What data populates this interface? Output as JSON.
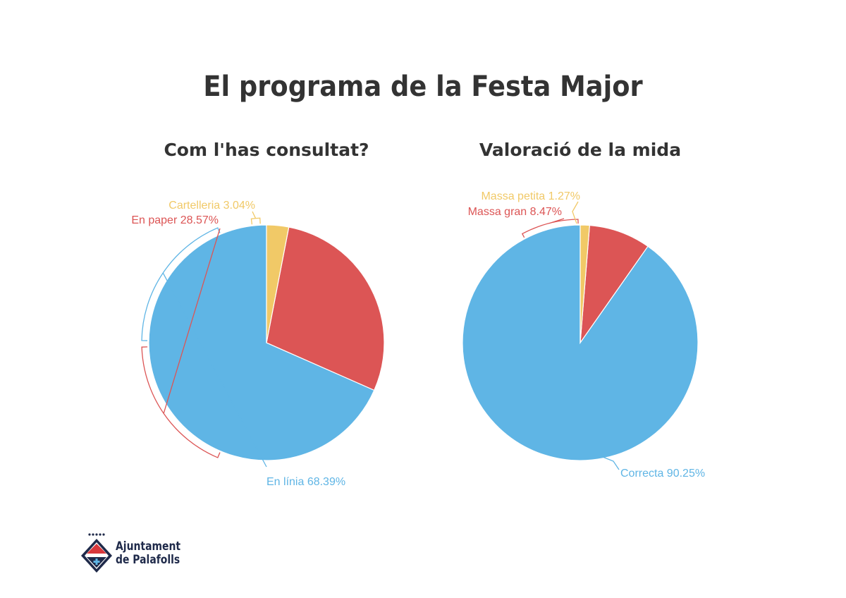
{
  "page": {
    "title": "El programa de la Festa Major"
  },
  "colors": {
    "blue": "#5fb5e5",
    "red": "#dc5555",
    "yellow": "#f1c967",
    "text_dark": "#333333",
    "logo_navy": "#1f2a4a",
    "logo_red": "#d8383c"
  },
  "chart_data": [
    {
      "type": "pie",
      "title": "Com l'has consultat?",
      "slices": [
        {
          "label": "En línia 68.39%",
          "value": 68.39,
          "color": "#5fb5e5"
        },
        {
          "label": "En paper 28.57%",
          "value": 28.57,
          "color": "#dc5555"
        },
        {
          "label": "Cartelleria 3.04%",
          "value": 3.04,
          "color": "#f1c967"
        }
      ]
    },
    {
      "type": "pie",
      "title": "Valoració de la mida",
      "slices": [
        {
          "label": "Correcta 90.25%",
          "value": 90.25,
          "color": "#5fb5e5"
        },
        {
          "label": "Massa gran 8.47%",
          "value": 8.47,
          "color": "#dc5555"
        },
        {
          "label": "Massa petita 1.27%",
          "value": 1.27,
          "color": "#f1c967"
        }
      ]
    }
  ],
  "logo": {
    "line1": "Ajuntament",
    "line2": "de Palafolls",
    "icon": "palafolls-crest-icon"
  }
}
